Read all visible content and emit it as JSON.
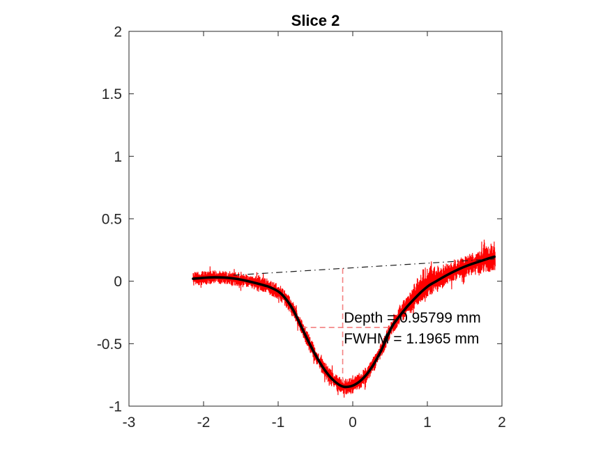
{
  "window": {
    "background": "#ffffff"
  },
  "chart_data": {
    "type": "line",
    "title": "Slice 2",
    "xlabel": "",
    "ylabel": "",
    "xlim": [
      -3,
      2
    ],
    "ylim": [
      -1,
      2
    ],
    "grid": false,
    "box": true,
    "legend_position": "none",
    "axis_color": "#262626",
    "x_ticks": {
      "values": [
        -3,
        -2,
        -1,
        0,
        1,
        2
      ],
      "labels": [
        "-3",
        "-2",
        "-1",
        "0",
        "1",
        "2"
      ]
    },
    "y_ticks": {
      "values": [
        -1,
        -0.5,
        0,
        0.5,
        1,
        1.5,
        2
      ],
      "labels": [
        "-1",
        "-0.5",
        "0",
        "0.5",
        "1",
        "1.5",
        "2"
      ]
    },
    "measurements": {
      "depth_mm": 0.95799,
      "fwhm_mm": 1.1965
    },
    "series": [
      {
        "name": "raw-profile",
        "style": "noisy",
        "color": "#ff0000",
        "line_width": 1.1,
        "x_start": -2.14,
        "x_end": 1.91,
        "points_count": 1500,
        "noise_seed": 20,
        "noise_amplitude": {
          "left": 0.036,
          "mid": 0.042,
          "right": 0.055
        },
        "upward_cluster": {
          "center_x": 0.98,
          "sigma": 0.22,
          "max_extra": 0.14
        },
        "right_end_flare": {
          "start_x": 1.55,
          "rate": 0.07
        }
      },
      {
        "name": "smoothed-fit",
        "style": "solid",
        "color": "#000000",
        "line_width": 3.6,
        "points": [
          [
            -2.14,
            0.02
          ],
          [
            -2.0,
            0.027
          ],
          [
            -1.85,
            0.031
          ],
          [
            -1.7,
            0.028
          ],
          [
            -1.55,
            0.018
          ],
          [
            -1.4,
            0.0
          ],
          [
            -1.28,
            -0.018
          ],
          [
            -1.12,
            -0.046
          ],
          [
            -0.98,
            -0.09
          ],
          [
            -0.88,
            -0.155
          ],
          [
            -0.79,
            -0.24
          ],
          [
            -0.685,
            -0.37
          ],
          [
            -0.6,
            -0.475
          ],
          [
            -0.5,
            -0.59
          ],
          [
            -0.4,
            -0.69
          ],
          [
            -0.3,
            -0.768
          ],
          [
            -0.2,
            -0.822
          ],
          [
            -0.12,
            -0.845
          ],
          [
            -0.02,
            -0.84
          ],
          [
            0.08,
            -0.808
          ],
          [
            0.18,
            -0.75
          ],
          [
            0.28,
            -0.665
          ],
          [
            0.38,
            -0.555
          ],
          [
            0.52,
            -0.37
          ],
          [
            0.62,
            -0.285
          ],
          [
            0.72,
            -0.21
          ],
          [
            0.82,
            -0.145
          ],
          [
            0.92,
            -0.085
          ],
          [
            1.02,
            -0.035
          ],
          [
            1.12,
            0.0
          ],
          [
            1.25,
            0.045
          ],
          [
            1.4,
            0.09
          ],
          [
            1.55,
            0.128
          ],
          [
            1.7,
            0.158
          ],
          [
            1.82,
            0.182
          ],
          [
            1.9,
            0.196
          ]
        ]
      },
      {
        "name": "surface-baseline",
        "style": "dash-dot",
        "color": "#1a1a1a",
        "line_width": 1.2,
        "points": [
          [
            -1.6,
            0.048
          ],
          [
            1.9,
            0.178
          ]
        ]
      }
    ],
    "measurement_lines": [
      {
        "name": "depth-line",
        "orientation": "vertical",
        "x": -0.135,
        "y1": 0.104,
        "y2": -0.848,
        "color": "#f47f7f",
        "dash": [
          8,
          5
        ],
        "line_width": 1.6
      },
      {
        "name": "fwhm-line",
        "orientation": "horizontal",
        "y": -0.37,
        "x1": -0.685,
        "x2": 0.52,
        "color": "#f47f7f",
        "dash": [
          8,
          5
        ],
        "line_width": 1.6
      }
    ],
    "annotations": [
      {
        "name": "depth-annotation",
        "text": "Depth = 0.95799 mm",
        "x": -0.121,
        "y": -0.331
      },
      {
        "name": "fwhm-annotation",
        "text": "FWHM = 1.1965 mm",
        "x": -0.121,
        "y": -0.498
      }
    ]
  }
}
